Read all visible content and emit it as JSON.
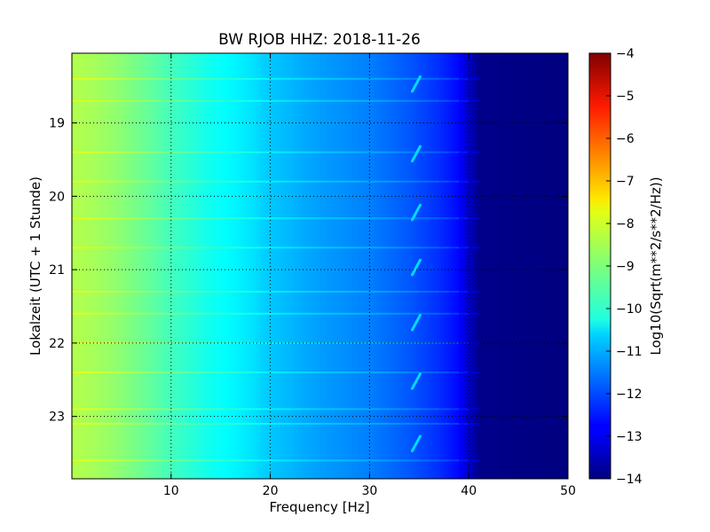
{
  "chart_data": {
    "type": "heatmap",
    "title": "BW RJOB HHZ: 2018-11-26",
    "xlabel": "Frequency [Hz]",
    "ylabel": "Lokalzeit (UTC + 1 Stunde)",
    "xlim": [
      0,
      50
    ],
    "ylim": [
      23.85,
      18.05
    ],
    "x_ticks": [
      10,
      20,
      30,
      40,
      50
    ],
    "y_ticks": [
      19,
      20,
      21,
      22,
      23
    ],
    "grid": true,
    "colormap": "jet",
    "colorbar": {
      "label": "Log10(Sqrt(m**2/s**2/Hz))",
      "range": [
        -14,
        -4
      ],
      "ticks": [
        -4,
        -5,
        -6,
        -7,
        -8,
        -9,
        -10,
        -11,
        -12,
        -13,
        -14
      ]
    },
    "level_profile": {
      "frequency_hz": [
        0,
        2,
        5,
        8,
        10,
        14,
        18,
        20,
        25,
        30,
        34,
        37,
        39,
        40,
        41,
        50
      ],
      "log10_psd": [
        -8.5,
        -8.6,
        -8.9,
        -9.3,
        -9.6,
        -10.1,
        -10.5,
        -10.8,
        -11.2,
        -11.5,
        -11.9,
        -12.3,
        -12.7,
        -13.3,
        -13.9,
        -14.0
      ]
    },
    "horizontal_bands_hours": [
      18.4,
      18.7,
      19.4,
      19.8,
      20.3,
      20.7,
      21.3,
      21.6,
      22.0,
      22.4,
      22.9,
      23.1,
      23.6
    ],
    "transient_hours_near_35hz": [
      18.45,
      19.4,
      20.2,
      20.95,
      21.7,
      22.5,
      23.35
    ]
  }
}
